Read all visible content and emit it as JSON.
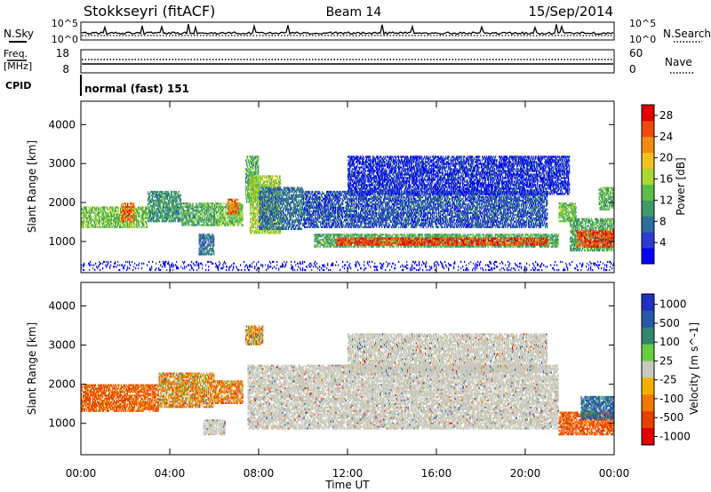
{
  "header": {
    "station": "Stokkseyri (fitACF)",
    "beam": "Beam 14",
    "date": "15/Sep/2014"
  },
  "top_panels": {
    "nsky_label": "N.Sky",
    "nsky_ticks": [
      "10^5",
      "10^0"
    ],
    "nsearch_label": "N.Search",
    "nsearch_ticks": [
      "10^5",
      "10^0"
    ],
    "freq_label": "Freq.",
    "freq_unit": "[MHz]",
    "freq_ticks": [
      "18",
      "8"
    ],
    "nave_label": "Nave",
    "nave_ticks": [
      "60",
      "0"
    ],
    "cpid_label": "CPID",
    "cpid_text": "normal (fast) 151"
  },
  "colors": {
    "power": [
      "#0000ff",
      "#2d3bd0",
      "#2e6e9a",
      "#3f9a65",
      "#5bbf48",
      "#a9d830",
      "#f4c020",
      "#f48a10",
      "#ee4a0a",
      "#e00000"
    ],
    "velocity": [
      "#2030c0",
      "#2858a8",
      "#2f8870",
      "#6acc40",
      "#c8c8bc",
      "#f4b000",
      "#f07800",
      "#e84000",
      "#e00000"
    ],
    "ground_scatter": "#c8c8bc"
  },
  "chart_data": [
    {
      "type": "heatmap",
      "name": "power",
      "ylabel": "Slant Range [km]",
      "xlabel": "",
      "x_ticks": [
        "00:00",
        "04:00",
        "08:00",
        "12:00",
        "16:00",
        "20:00",
        "00:00"
      ],
      "y_ticks": [
        1000,
        2000,
        3000,
        4000
      ],
      "ylim": [
        200,
        4600
      ],
      "xlim_hours": [
        0,
        24
      ],
      "colorbar": {
        "label": "Power [dB]",
        "ticks": [
          "4",
          "8",
          "12",
          "16",
          "20",
          "24",
          "28"
        ],
        "range": [
          0,
          30
        ]
      },
      "regions": [
        {
          "t": [
            0.0,
            3.0
          ],
          "r": [
            1350,
            1900
          ],
          "v": 14
        },
        {
          "t": [
            1.8,
            2.4
          ],
          "r": [
            1500,
            2000
          ],
          "v": 24
        },
        {
          "t": [
            3.0,
            4.5
          ],
          "r": [
            1500,
            2300
          ],
          "v": 10
        },
        {
          "t": [
            4.5,
            6.2
          ],
          "r": [
            1400,
            2000
          ],
          "v": 12
        },
        {
          "t": [
            5.3,
            6.0
          ],
          "r": [
            650,
            1200
          ],
          "v": 8
        },
        {
          "t": [
            6.2,
            7.3
          ],
          "r": [
            1400,
            2000
          ],
          "v": 14
        },
        {
          "t": [
            6.6,
            7.1
          ],
          "r": [
            1700,
            2100
          ],
          "v": 24
        },
        {
          "t": [
            7.4,
            8.0
          ],
          "r": [
            2000,
            3200
          ],
          "v": 12
        },
        {
          "t": [
            7.6,
            9.0
          ],
          "r": [
            1200,
            2700
          ],
          "v": 16
        },
        {
          "t": [
            8.0,
            10.0
          ],
          "r": [
            1300,
            2400
          ],
          "v": 8
        },
        {
          "t": [
            10.0,
            21.0
          ],
          "r": [
            1350,
            2300
          ],
          "v": 6
        },
        {
          "t": [
            10.5,
            21.5
          ],
          "r": [
            850,
            1200
          ],
          "v": 12
        },
        {
          "t": [
            11.5,
            21.0
          ],
          "r": [
            900,
            1100
          ],
          "v": 26
        },
        {
          "t": [
            12.0,
            22.0
          ],
          "r": [
            2200,
            3200
          ],
          "v": 4
        },
        {
          "t": [
            21.5,
            22.3
          ],
          "r": [
            1500,
            2000
          ],
          "v": 14
        },
        {
          "t": [
            22.0,
            24.0
          ],
          "r": [
            750,
            1600
          ],
          "v": 12
        },
        {
          "t": [
            22.3,
            24.0
          ],
          "r": [
            850,
            1300
          ],
          "v": 26
        },
        {
          "t": [
            23.3,
            24.0
          ],
          "r": [
            1800,
            2400
          ],
          "v": 12
        },
        {
          "t": [
            0.0,
            24.0
          ],
          "r": [
            250,
            500
          ],
          "v": 2
        }
      ]
    },
    {
      "type": "heatmap",
      "name": "velocity",
      "ylabel": "Slant Range [km]",
      "xlabel": "Time UT",
      "x_ticks": [
        "00:00",
        "04:00",
        "08:00",
        "12:00",
        "16:00",
        "20:00",
        "00:00"
      ],
      "y_ticks": [
        1000,
        2000,
        3000,
        4000
      ],
      "ylim": [
        200,
        4600
      ],
      "xlim_hours": [
        0,
        24
      ],
      "colorbar": {
        "label": "Velocity [m s^-1]",
        "ticks": [
          "1000",
          "500",
          "100",
          "25",
          "-25",
          "-100",
          "-500",
          "-1000"
        ]
      },
      "regions": [
        {
          "t": [
            0.0,
            3.5
          ],
          "r": [
            1300,
            2000
          ],
          "v": -300
        },
        {
          "t": [
            3.5,
            6.0
          ],
          "r": [
            1400,
            2300
          ],
          "v": -150
        },
        {
          "t": [
            6.0,
            7.3
          ],
          "r": [
            1500,
            2100
          ],
          "v": -200
        },
        {
          "t": [
            7.4,
            8.2
          ],
          "r": [
            3000,
            3500
          ],
          "v": -100
        },
        {
          "t": [
            5.5,
            6.5
          ],
          "r": [
            700,
            1100
          ],
          "v": 0
        },
        {
          "t": [
            7.5,
            21.5
          ],
          "r": [
            850,
            2500
          ],
          "v": 0
        },
        {
          "t": [
            12.0,
            21.0
          ],
          "r": [
            2300,
            3300
          ],
          "v": 0
        },
        {
          "t": [
            21.5,
            24.0
          ],
          "r": [
            700,
            1300
          ],
          "v": -350
        },
        {
          "t": [
            22.5,
            24.0
          ],
          "r": [
            1100,
            1700
          ],
          "v": 400
        }
      ]
    }
  ]
}
